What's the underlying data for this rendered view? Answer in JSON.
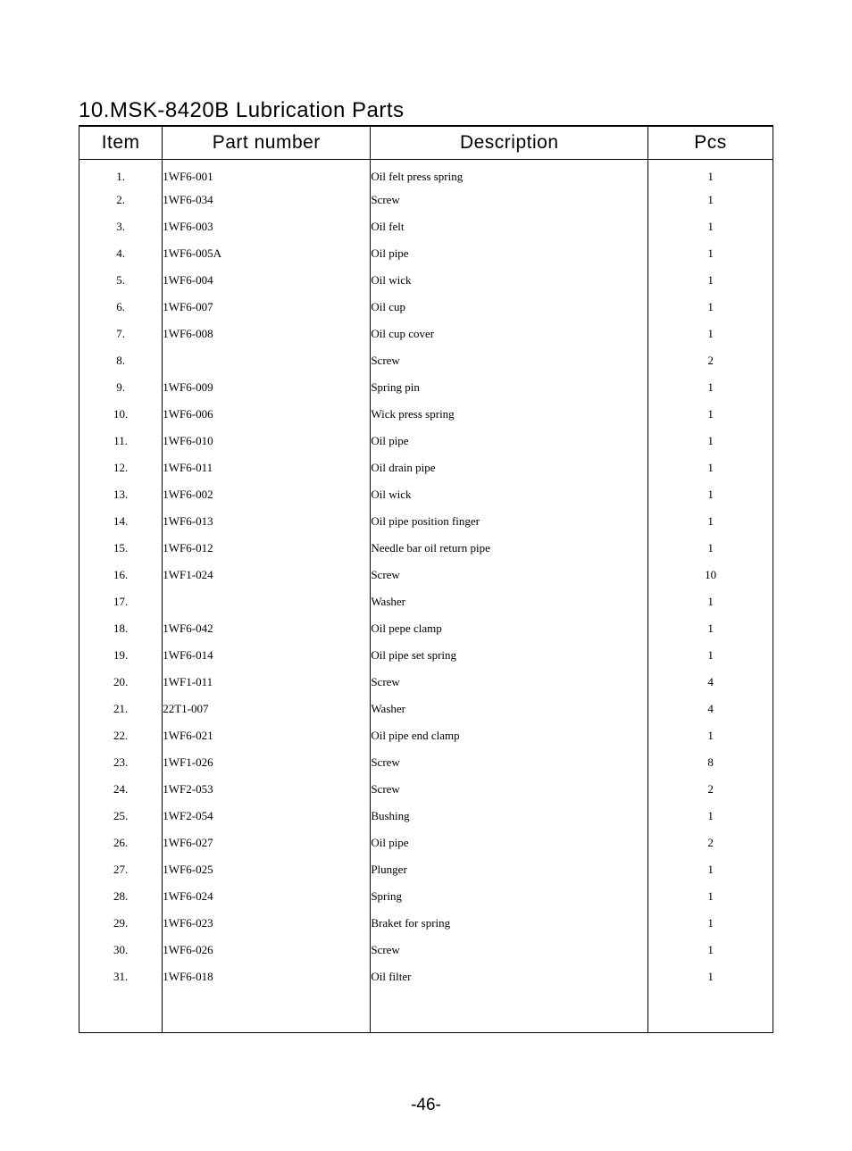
{
  "title": "10.MSK-8420B  Lubrication Parts",
  "page_number": "-46-",
  "headers": {
    "item": "Item",
    "part": "Part number",
    "desc": "Description",
    "pcs": "Pcs"
  },
  "columns": [
    "item",
    "part_number",
    "description",
    "pcs"
  ],
  "col_widths_pct": [
    12,
    30,
    40,
    18
  ],
  "fonts": {
    "title_family": "Century Gothic",
    "title_size_pt": 18,
    "header_family": "Century Gothic",
    "header_size_pt": 16,
    "body_family": "Times New Roman",
    "body_size_pt": 10,
    "page_num_size_pt": 14
  },
  "colors": {
    "text": "#000000",
    "border": "#000000",
    "background": "#ffffff"
  },
  "rows": [
    {
      "item": "1.",
      "part_number": "1WF6-001",
      "description": "Oil felt press spring",
      "pcs": "1"
    },
    {
      "item": "2.",
      "part_number": "1WF6-034",
      "description": "Screw",
      "pcs": "1"
    },
    {
      "item": "3.",
      "part_number": "1WF6-003",
      "description": "Oil felt",
      "pcs": "1"
    },
    {
      "item": "4.",
      "part_number": "1WF6-005A",
      "description": "Oil pipe",
      "pcs": "1"
    },
    {
      "item": "5.",
      "part_number": "1WF6-004",
      "description": "Oil wick",
      "pcs": "1"
    },
    {
      "item": "6.",
      "part_number": "1WF6-007",
      "description": "Oil cup",
      "pcs": "1"
    },
    {
      "item": "7.",
      "part_number": "1WF6-008",
      "description": "Oil cup cover",
      "pcs": "1"
    },
    {
      "item": "8.",
      "part_number": "",
      "description": "Screw",
      "pcs": "2"
    },
    {
      "item": "9.",
      "part_number": "1WF6-009",
      "description": "Spring pin",
      "pcs": "1"
    },
    {
      "item": "10.",
      "part_number": "1WF6-006",
      "description": "Wick press spring",
      "pcs": "1"
    },
    {
      "item": "11.",
      "part_number": "1WF6-010",
      "description": "Oil pipe",
      "pcs": "1"
    },
    {
      "item": "12.",
      "part_number": "1WF6-011",
      "description": "Oil drain pipe",
      "pcs": "1"
    },
    {
      "item": "13.",
      "part_number": "1WF6-002",
      "description": "Oil wick",
      "pcs": "1"
    },
    {
      "item": "14.",
      "part_number": "1WF6-013",
      "description": "Oil pipe position finger",
      "pcs": "1"
    },
    {
      "item": "15.",
      "part_number": "1WF6-012",
      "description": "Needle bar oil return pipe",
      "pcs": "1"
    },
    {
      "item": "16.",
      "part_number": "1WF1-024",
      "description": "Screw",
      "pcs": "10"
    },
    {
      "item": "17.",
      "part_number": "",
      "description": "Washer",
      "pcs": "1"
    },
    {
      "item": "18.",
      "part_number": "1WF6-042",
      "description": "Oil pepe clamp",
      "pcs": "1"
    },
    {
      "item": "19.",
      "part_number": "1WF6-014",
      "description": "Oil pipe set spring",
      "pcs": "1"
    },
    {
      "item": "20.",
      "part_number": "1WF1-011",
      "description": "Screw",
      "pcs": "4"
    },
    {
      "item": "21.",
      "part_number": "22T1-007",
      "description": "Washer",
      "pcs": "4"
    },
    {
      "item": "22.",
      "part_number": "1WF6-021",
      "description": "Oil pipe end clamp",
      "pcs": "1"
    },
    {
      "item": "23.",
      "part_number": "1WF1-026",
      "description": "Screw",
      "pcs": "8"
    },
    {
      "item": "24.",
      "part_number": "1WF2-053",
      "description": "Screw",
      "pcs": "2"
    },
    {
      "item": "25.",
      "part_number": "1WF2-054",
      "description": "Bushing",
      "pcs": "1"
    },
    {
      "item": "26.",
      "part_number": "1WF6-027",
      "description": "Oil pipe",
      "pcs": "2"
    },
    {
      "item": "27.",
      "part_number": "1WF6-025",
      "description": "Plunger",
      "pcs": "1"
    },
    {
      "item": "28.",
      "part_number": "1WF6-024",
      "description": "Spring",
      "pcs": "1"
    },
    {
      "item": "29.",
      "part_number": "1WF6-023",
      "description": "Braket for spring",
      "pcs": "1"
    },
    {
      "item": "30.",
      "part_number": "1WF6-026",
      "description": "Screw",
      "pcs": "1"
    },
    {
      "item": "31.",
      "part_number": "1WF6-018",
      "description": "Oil filter",
      "pcs": "1"
    }
  ]
}
